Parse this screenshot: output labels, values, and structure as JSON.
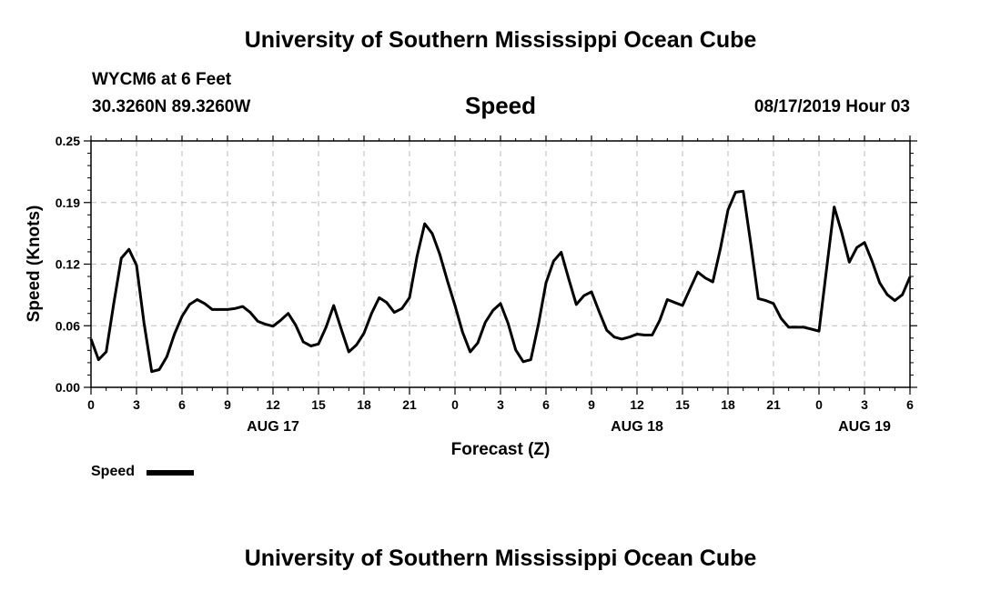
{
  "page": {
    "title": "University of Southern Mississippi Ocean Cube",
    "station": "WYCM6 at 6 Feet",
    "coordinates": "30.3260N 89.3260W",
    "datetime": "08/17/2019 Hour 03"
  },
  "chart_data": {
    "type": "line",
    "title": "Speed",
    "xlabel": "Forecast (Z)",
    "ylabel": "Speed (Knots)",
    "ylim": [
      0,
      0.25
    ],
    "xlim": [
      0,
      54
    ],
    "yticks": [
      "0.00",
      "0.06",
      "0.12",
      "0.19",
      "0.25"
    ],
    "ytick_values": [
      0,
      0.0625,
      0.125,
      0.1875,
      0.25
    ],
    "xtick_hours": [
      0,
      3,
      6,
      9,
      12,
      15,
      18,
      21,
      24,
      27,
      30,
      33,
      36,
      39,
      42,
      45,
      48,
      51,
      54
    ],
    "xtick_labels": [
      "0",
      "3",
      "6",
      "9",
      "12",
      "15",
      "18",
      "21",
      "0",
      "3",
      "6",
      "9",
      "12",
      "15",
      "18",
      "21",
      "0",
      "3",
      "6"
    ],
    "day_labels": [
      {
        "hour": 12,
        "label": "AUG 17"
      },
      {
        "hour": 36,
        "label": "AUG 18"
      },
      {
        "hour": 51,
        "label": "AUG 19"
      }
    ],
    "grid": true,
    "legend_position": "bottom-left",
    "series": [
      {
        "name": "Speed",
        "color": "#000000",
        "x": [
          0,
          0.5,
          1,
          1.5,
          2,
          2.5,
          3,
          3.5,
          4,
          4.5,
          5,
          5.5,
          6,
          6.5,
          7,
          7.5,
          8,
          8.5,
          9,
          9.5,
          10,
          10.5,
          11,
          11.5,
          12,
          12.5,
          13,
          13.5,
          14,
          14.5,
          15,
          15.5,
          16,
          16.5,
          17,
          17.5,
          18,
          18.5,
          19,
          19.5,
          20,
          20.5,
          21,
          21.5,
          22,
          22.5,
          23,
          23.5,
          24,
          24.5,
          25,
          25.5,
          26,
          26.5,
          27,
          27.5,
          28,
          28.5,
          29,
          29.5,
          30,
          30.5,
          31,
          31.5,
          32,
          32.5,
          33,
          33.5,
          34,
          34.5,
          35,
          35.5,
          36,
          36.5,
          37,
          37.5,
          38,
          38.5,
          39,
          39.5,
          40,
          40.5,
          41,
          41.5,
          42,
          42.5,
          43,
          43.5,
          44,
          44.5,
          45,
          45.5,
          46,
          46.5,
          47,
          47.5,
          48,
          48.5,
          49,
          49.5,
          50,
          50.5,
          51,
          51.5,
          52,
          52.5,
          53,
          53.5,
          54
        ],
        "values": [
          0.049,
          0.028,
          0.036,
          0.085,
          0.131,
          0.14,
          0.124,
          0.065,
          0.016,
          0.018,
          0.031,
          0.054,
          0.072,
          0.084,
          0.089,
          0.085,
          0.079,
          0.079,
          0.079,
          0.08,
          0.082,
          0.076,
          0.067,
          0.064,
          0.062,
          0.068,
          0.075,
          0.063,
          0.046,
          0.042,
          0.044,
          0.061,
          0.083,
          0.059,
          0.036,
          0.043,
          0.055,
          0.075,
          0.091,
          0.086,
          0.076,
          0.08,
          0.091,
          0.133,
          0.166,
          0.156,
          0.135,
          0.108,
          0.083,
          0.056,
          0.036,
          0.045,
          0.066,
          0.078,
          0.085,
          0.065,
          0.038,
          0.026,
          0.028,
          0.064,
          0.106,
          0.128,
          0.137,
          0.11,
          0.084,
          0.093,
          0.097,
          0.077,
          0.058,
          0.051,
          0.049,
          0.051,
          0.054,
          0.053,
          0.053,
          0.068,
          0.089,
          0.086,
          0.083,
          0.1,
          0.117,
          0.111,
          0.107,
          0.141,
          0.18,
          0.198,
          0.199,
          0.146,
          0.09,
          0.088,
          0.085,
          0.07,
          0.061,
          0.061,
          0.061,
          0.059,
          0.057,
          0.12,
          0.183,
          0.157,
          0.127,
          0.142,
          0.147,
          0.128,
          0.106,
          0.094,
          0.088,
          0.094,
          0.112
        ]
      }
    ]
  }
}
